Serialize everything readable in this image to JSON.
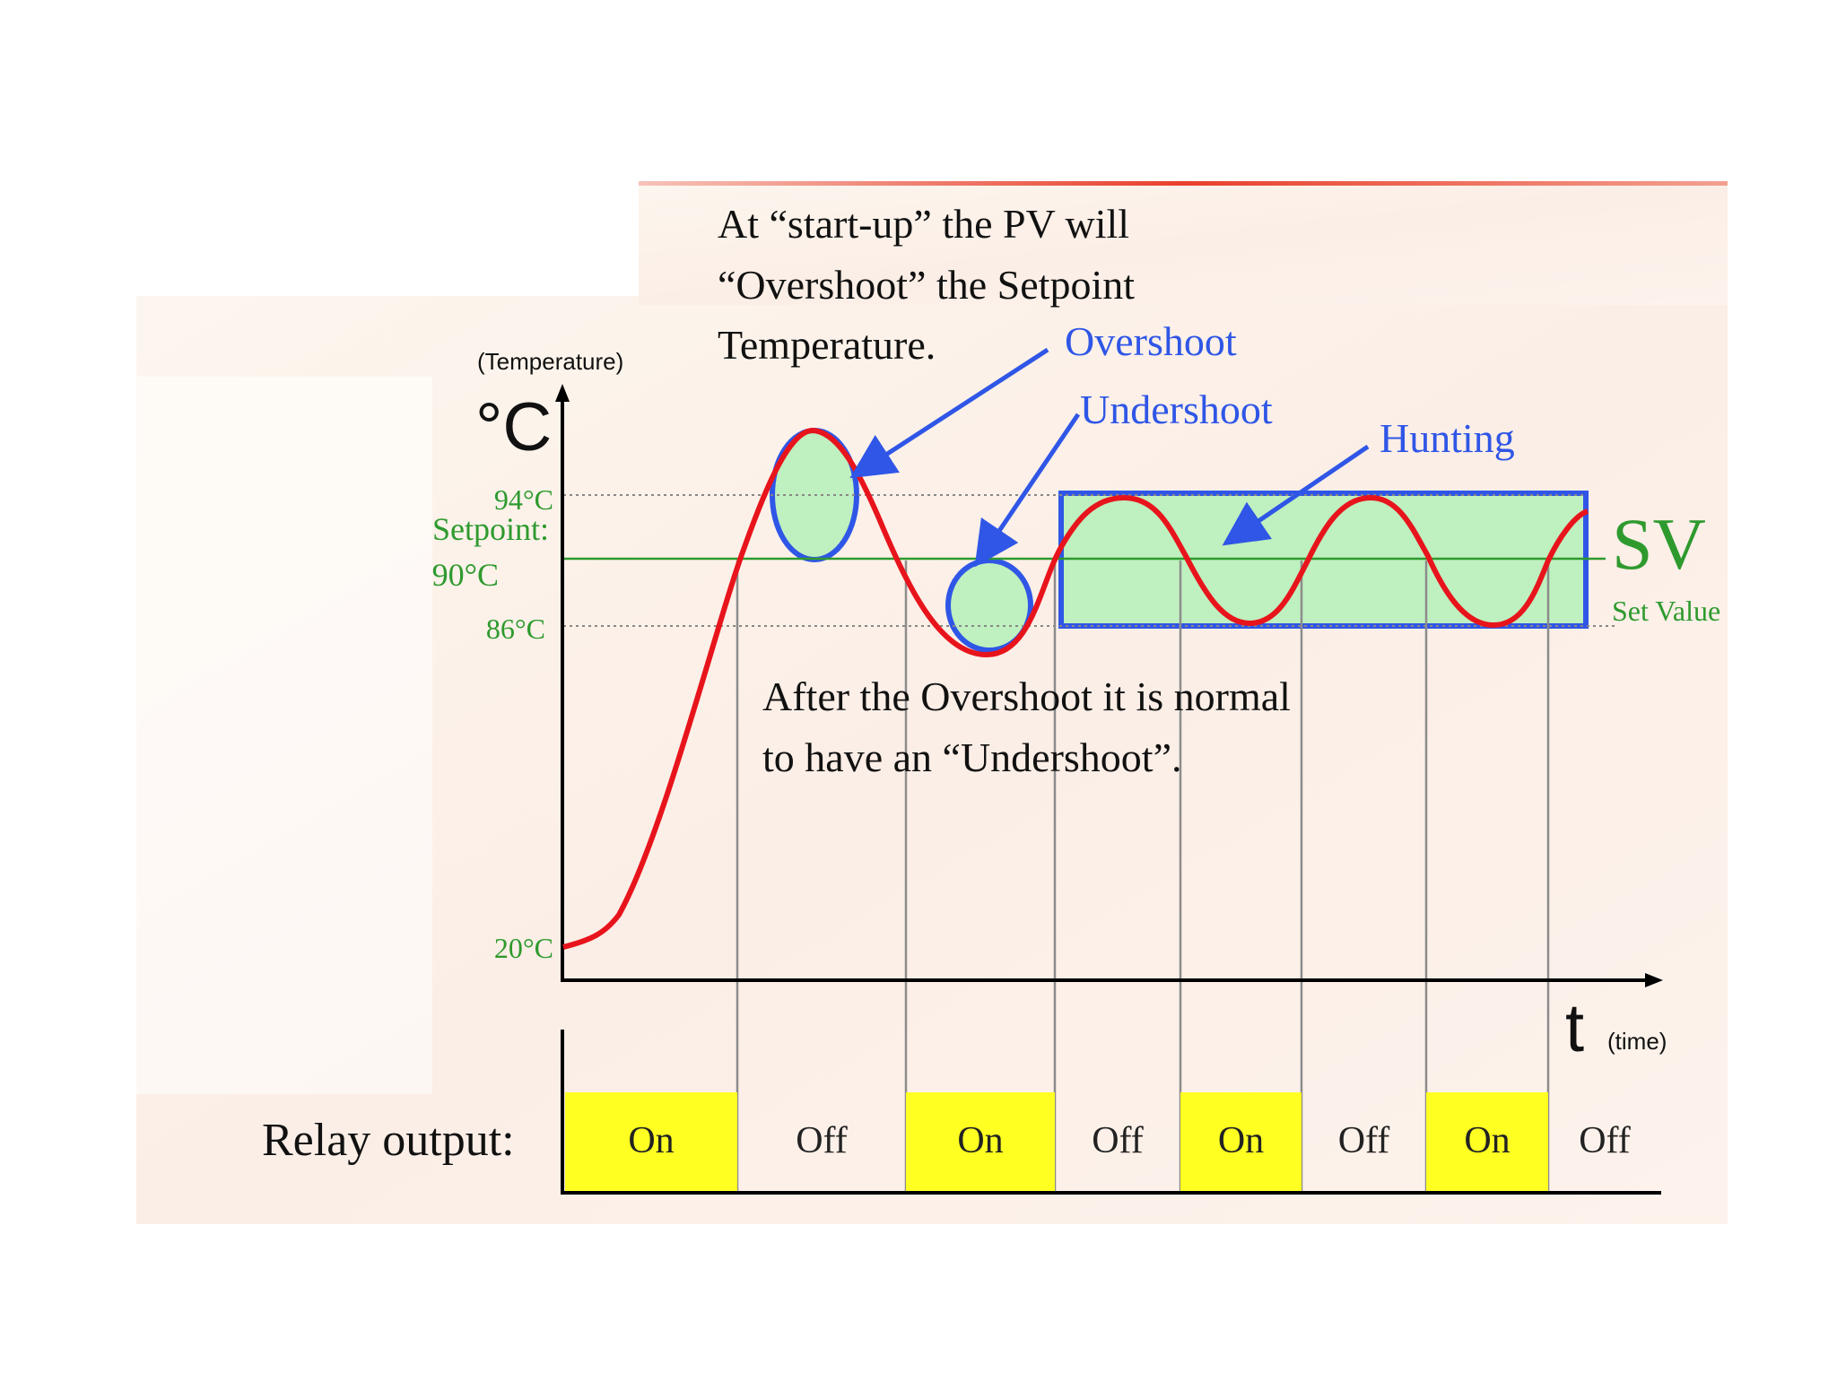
{
  "colors": {
    "curve": "#e8141c",
    "annotation_blue": "#2f56e6",
    "setpoint_green": "#2e9a2e",
    "region_fill": "#bff0bf",
    "relay_on": "#ffff22",
    "axis": "#000000",
    "banner_top": "#e8402c"
  },
  "axis": {
    "y_unit_label": "(Temperature)",
    "y_unit": "°C",
    "x_unit": "t",
    "x_unit_label": "(time)"
  },
  "ticks": {
    "t94": "94°C",
    "setpoint_line1": "Setpoint:",
    "setpoint_line2": "90°C",
    "t86": "86°C",
    "t20": "20°C"
  },
  "sv": {
    "label": "SV",
    "sublabel": "Set Value"
  },
  "annotations": {
    "startup": [
      "At “start-up” the PV will",
      "“Overshoot” the Setpoint",
      "Temperature."
    ],
    "overshoot": "Overshoot",
    "undershoot": "Undershoot",
    "hunting": "Hunting",
    "after": [
      "After the Overshoot it is normal",
      "to have an “Undershoot”."
    ]
  },
  "relay": {
    "label": "Relay output:",
    "states": [
      "On",
      "Off",
      "On",
      "Off",
      "On",
      "Off",
      "On",
      "Off"
    ]
  },
  "chart_data": {
    "type": "line",
    "ylabel": "(Temperature)",
    "xlabel": "(time)",
    "y_ticks": [
      "94°C",
      "Setpoint: 90°C",
      "86°C",
      "20°C"
    ],
    "reference_lines": [
      {
        "value": 94,
        "style": "dotted"
      },
      {
        "value": 90,
        "style": "solid",
        "label": "SV"
      },
      {
        "value": 86,
        "style": "dotted"
      }
    ],
    "series": [
      {
        "values": [
          20,
          35,
          75,
          94,
          93,
          86,
          86,
          94,
          86,
          94,
          86,
          92
        ]
      }
    ]
  }
}
